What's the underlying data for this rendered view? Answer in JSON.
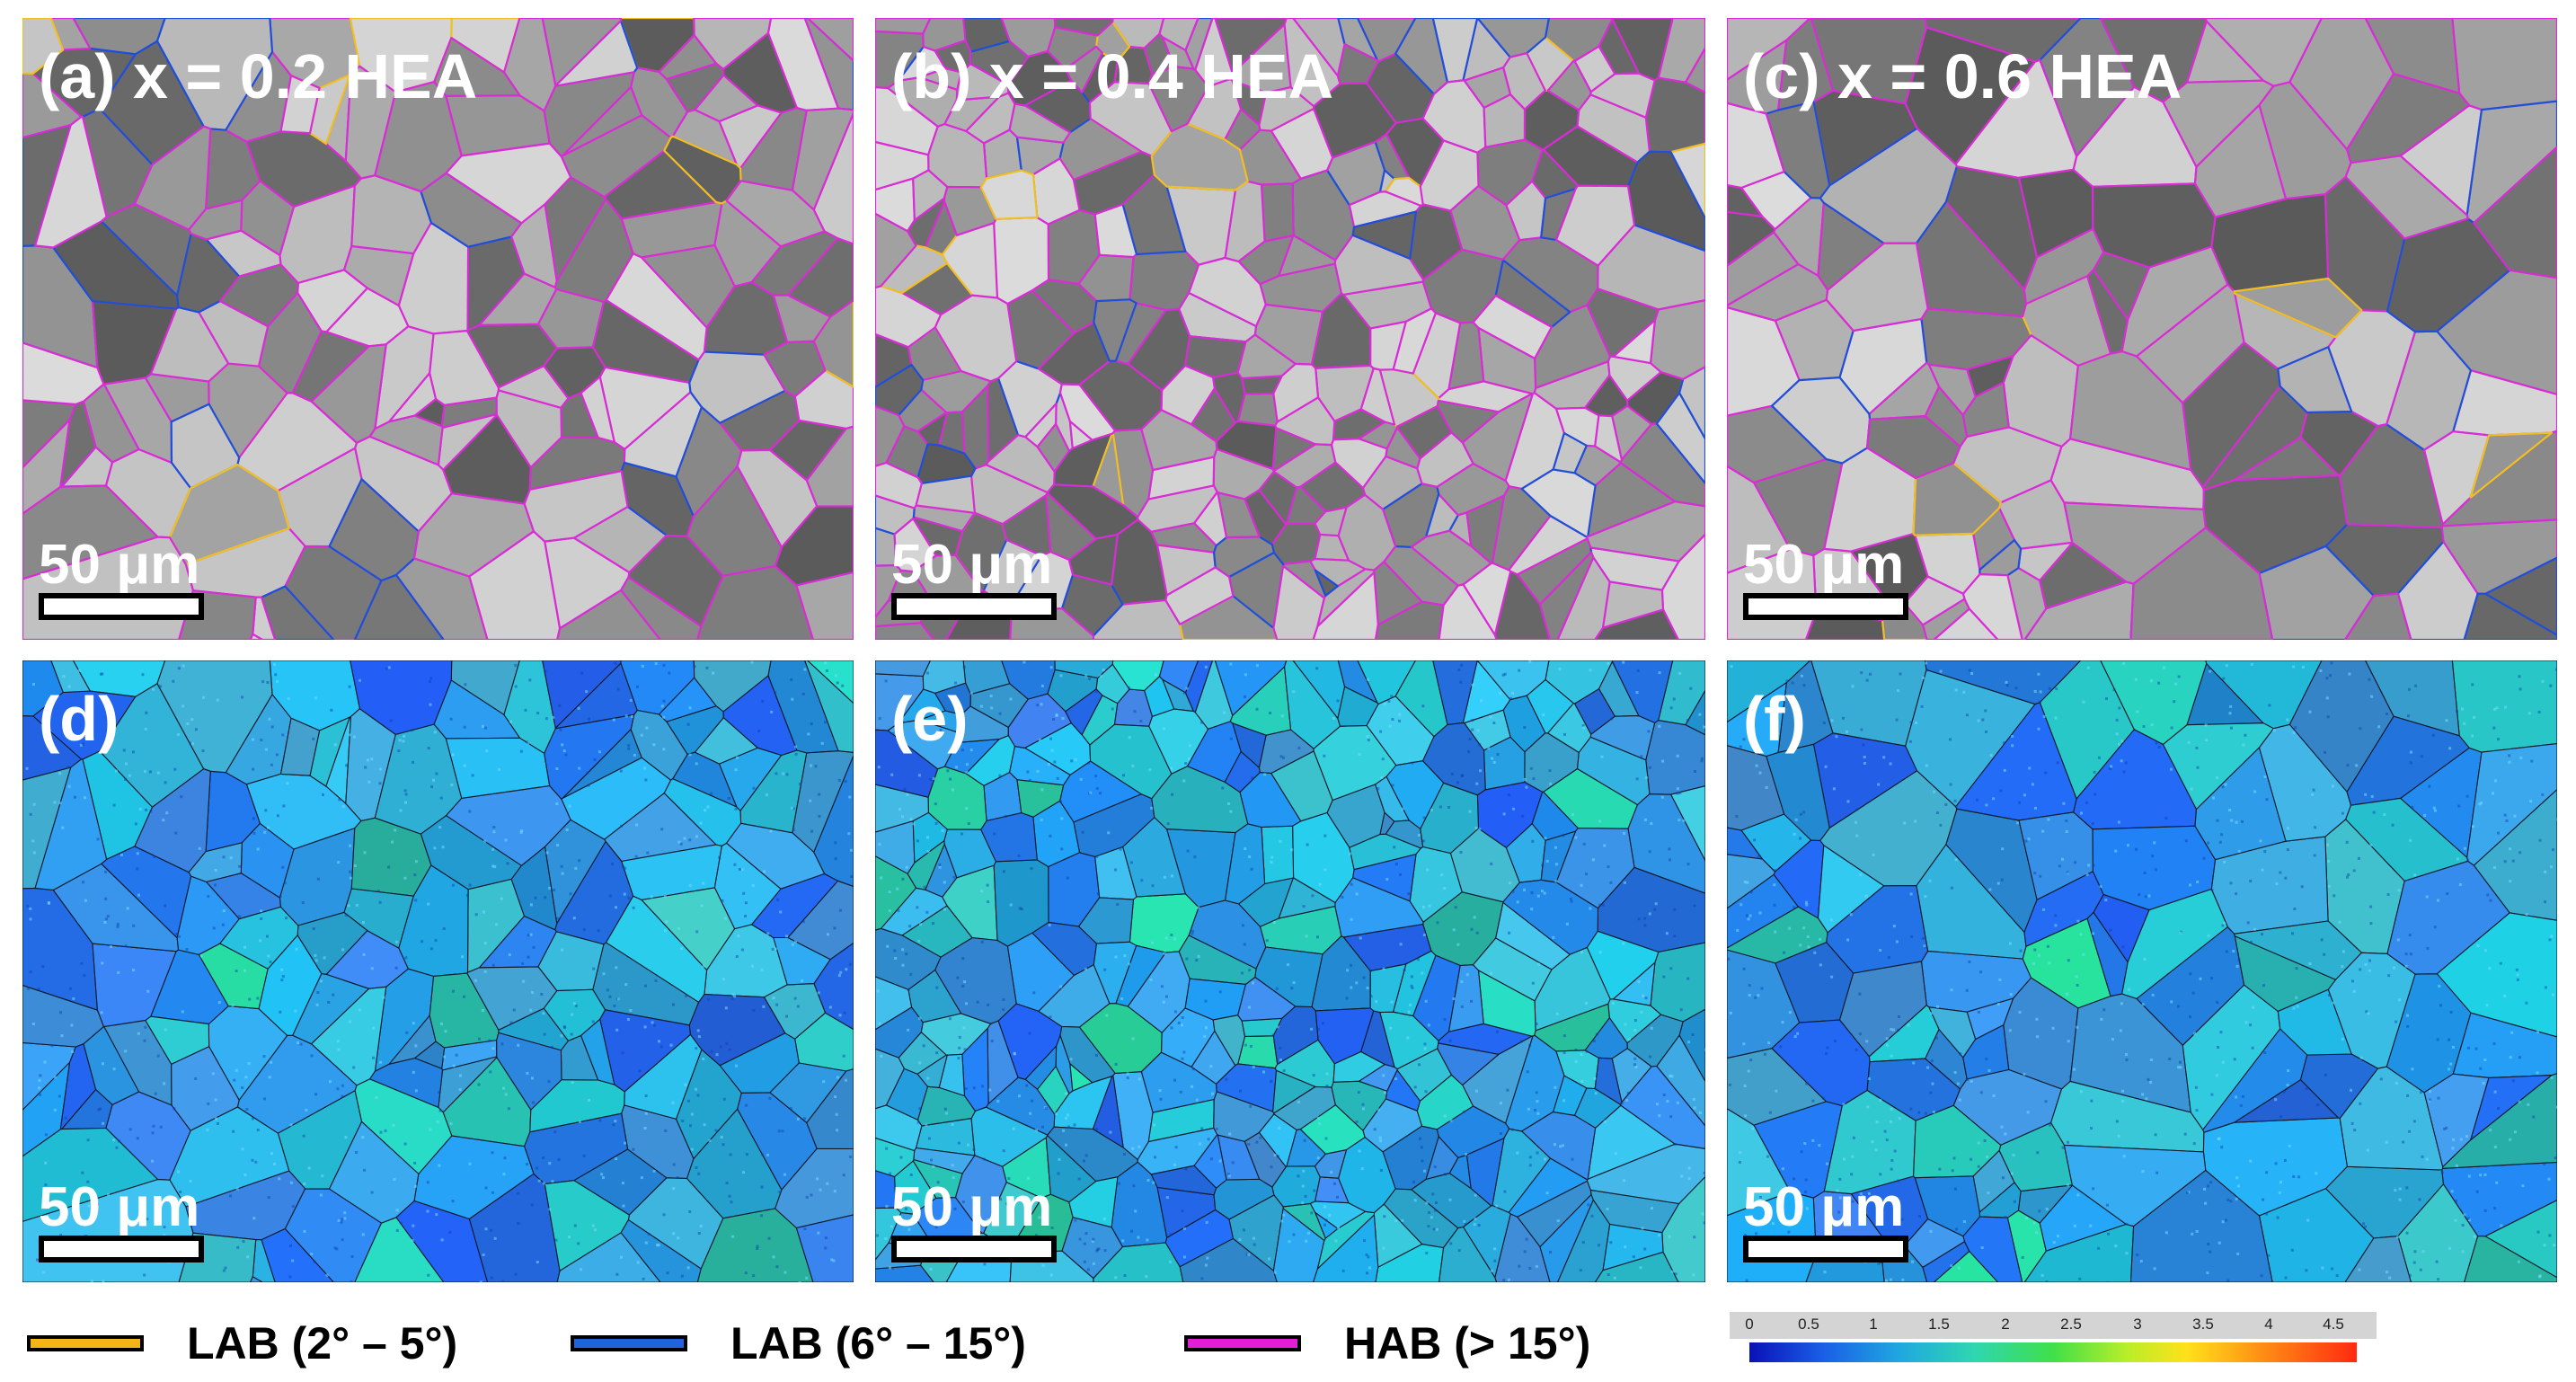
{
  "panels": [
    {
      "label": "(a) x = 0.2 HEA",
      "scale": "50 μm",
      "kind": "boundary"
    },
    {
      "label": "(b) x = 0.4 HEA",
      "scale": "50 μm",
      "kind": "boundary"
    },
    {
      "label": "(c) x = 0.6 HEA",
      "scale": "50 μm",
      "kind": "boundary"
    },
    {
      "label": "(d)",
      "scale": "50 μm",
      "kind": "kam"
    },
    {
      "label": "(e)",
      "scale": "50 μm",
      "kind": "kam"
    },
    {
      "label": "(f)",
      "scale": "50 μm",
      "kind": "kam"
    }
  ],
  "legend": [
    {
      "text": "LAB (2° – 5°)",
      "color": "#f2b417"
    },
    {
      "text": "LAB (6° – 15°)",
      "color": "#1f63dd"
    },
    {
      "text": "HAB (> 15°)",
      "color": "#e020d8"
    }
  ],
  "colorbar": {
    "ticks": [
      "0",
      "0.5",
      "1",
      "1.5",
      "2",
      "2.5",
      "3",
      "3.5",
      "4",
      "4.5"
    ]
  },
  "colors": {
    "hab": "#d92bd6",
    "lab_low": "#f0c020",
    "lab_high": "#1f4fd8",
    "kam_base": "#2f8ee6"
  }
}
